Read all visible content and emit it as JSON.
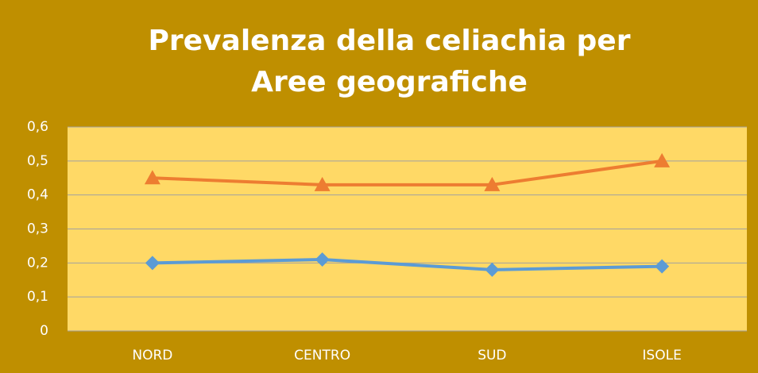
{
  "chart_data": {
    "type": "line",
    "title": "Prevalenza della celiachia per Aree geografiche",
    "categories": [
      "NORD",
      "CENTRO",
      "SUD",
      "ISOLE"
    ],
    "series": [
      {
        "color": "#ed7d31",
        "marker": "triangle",
        "values": [
          0.45,
          0.43,
          0.43,
          0.5
        ]
      },
      {
        "color": "#5b9bd5",
        "marker": "diamond",
        "values": [
          0.2,
          0.21,
          0.18,
          0.19
        ]
      }
    ],
    "ylim": [
      0,
      0.6
    ],
    "yticks": [
      0,
      {
        "value": 0.1,
        "label": "0,1"
      },
      {
        "value": 0.2,
        "label": "0,2"
      },
      {
        "value": 0.3,
        "label": "0,3"
      },
      {
        "value": 0.4,
        "label": "0,4"
      },
      {
        "value": 0.5,
        "label": "0,5"
      },
      {
        "value": 0.6,
        "label": "0,6"
      }
    ],
    "grid": true
  }
}
